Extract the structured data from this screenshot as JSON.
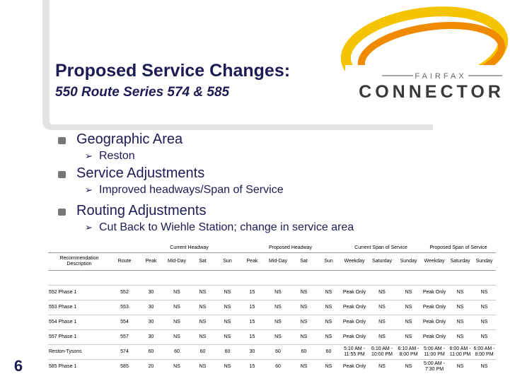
{
  "header": {
    "title": "Proposed Service Changes:",
    "subtitle": "550 Route Series 574 & 585"
  },
  "logo": {
    "top": "FAIRFAX",
    "bottom": "CONNECTOR"
  },
  "bullets": [
    {
      "text": "Geographic Area",
      "sub": "Reston"
    },
    {
      "text": "Service Adjustments",
      "sub": "Improved headways/Span of Service"
    },
    {
      "text": "Routing Adjustments",
      "sub": "Cut Back to Wiehle Station; change in service area"
    }
  ],
  "table": {
    "groups": [
      "Current Headway",
      "Proposed Headway",
      "Current Span of Service",
      "Proposed Span of Service"
    ],
    "columns": [
      "Recommendation Description",
      "Route",
      "Peak",
      "Mid-Day",
      "Sat",
      "Sun",
      "Peak",
      "Mid-Day",
      "Sat",
      "Sun",
      "Weekday",
      "Saturday",
      "Sunday",
      "Weekday",
      "Saturday",
      "Sunday"
    ],
    "rows": [
      [
        "552 Phase 1",
        "552",
        "30",
        "NS",
        "NS",
        "NS",
        "15",
        "NS",
        "NS",
        "NS",
        "Peak Only",
        "NS",
        "NS",
        "Peak Only",
        "NS",
        "NS"
      ],
      [
        "553 Phase 1",
        "553",
        "30",
        "NS",
        "NS",
        "NS",
        "15",
        "NS",
        "NS",
        "NS",
        "Peak Only",
        "NS",
        "NS",
        "Peak Only",
        "NS",
        "NS"
      ],
      [
        "554 Phase 1",
        "554",
        "30",
        "NS",
        "NS",
        "NS",
        "15",
        "NS",
        "NS",
        "NS",
        "Peak Only",
        "NS",
        "NS",
        "Peak Only",
        "NS",
        "NS"
      ],
      [
        "557 Phase 1",
        "557",
        "30",
        "NS",
        "NS",
        "NS",
        "15",
        "NS",
        "NS",
        "NS",
        "Peak Only",
        "NS",
        "NS",
        "Peak Only",
        "NS",
        "NS"
      ],
      [
        "Reston-Tysons",
        "574",
        "60",
        "60",
        "60",
        "60",
        "30",
        "60",
        "60",
        "60",
        "5:10 AM - 11:55 PM",
        "6:10 AM - 10:00 PM",
        "6:10 AM - 8:00 PM",
        "5:00 AM - 11:00 PM",
        "6:00 AM - 11:00 PM",
        "6:00 AM - 8:00 PM"
      ],
      [
        "585 Phase 1",
        "585",
        "20",
        "NS",
        "NS",
        "NS",
        "15",
        "60",
        "NS",
        "NS",
        "Peak Only",
        "NS",
        "NS",
        "5:00 AM - 7:30 PM",
        "NS",
        "NS"
      ]
    ]
  },
  "slide_number": "6"
}
